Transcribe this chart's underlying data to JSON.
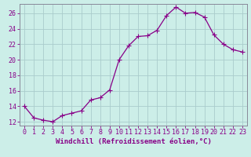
{
  "x": [
    0,
    1,
    2,
    3,
    4,
    5,
    6,
    7,
    8,
    9,
    10,
    11,
    12,
    13,
    14,
    15,
    16,
    17,
    18,
    19,
    20,
    21,
    22,
    23
  ],
  "y": [
    14.0,
    12.5,
    12.2,
    12.0,
    12.8,
    13.1,
    13.4,
    14.8,
    15.1,
    16.1,
    20.0,
    21.8,
    23.0,
    23.1,
    23.8,
    25.7,
    26.8,
    26.0,
    26.1,
    25.5,
    23.2,
    22.0,
    21.3,
    21.0
  ],
  "xlabel": "Windchill (Refroidissement éolien,°C)",
  "xlim": [
    -0.5,
    23.5
  ],
  "ylim": [
    11.5,
    27.2
  ],
  "yticks": [
    12,
    14,
    16,
    18,
    20,
    22,
    24,
    26
  ],
  "xticks": [
    0,
    1,
    2,
    3,
    4,
    5,
    6,
    7,
    8,
    9,
    10,
    11,
    12,
    13,
    14,
    15,
    16,
    17,
    18,
    19,
    20,
    21,
    22,
    23
  ],
  "line_color": "#880088",
  "marker_color": "#880088",
  "bg_color": "#cceee8",
  "grid_color": "#aacccc",
  "axis_color": "#888899",
  "label_color": "#880088",
  "tick_label_color": "#880088",
  "xlabel_fontsize": 6.5,
  "tick_fontsize": 6.0,
  "marker_size": 2.0,
  "line_width": 0.9
}
